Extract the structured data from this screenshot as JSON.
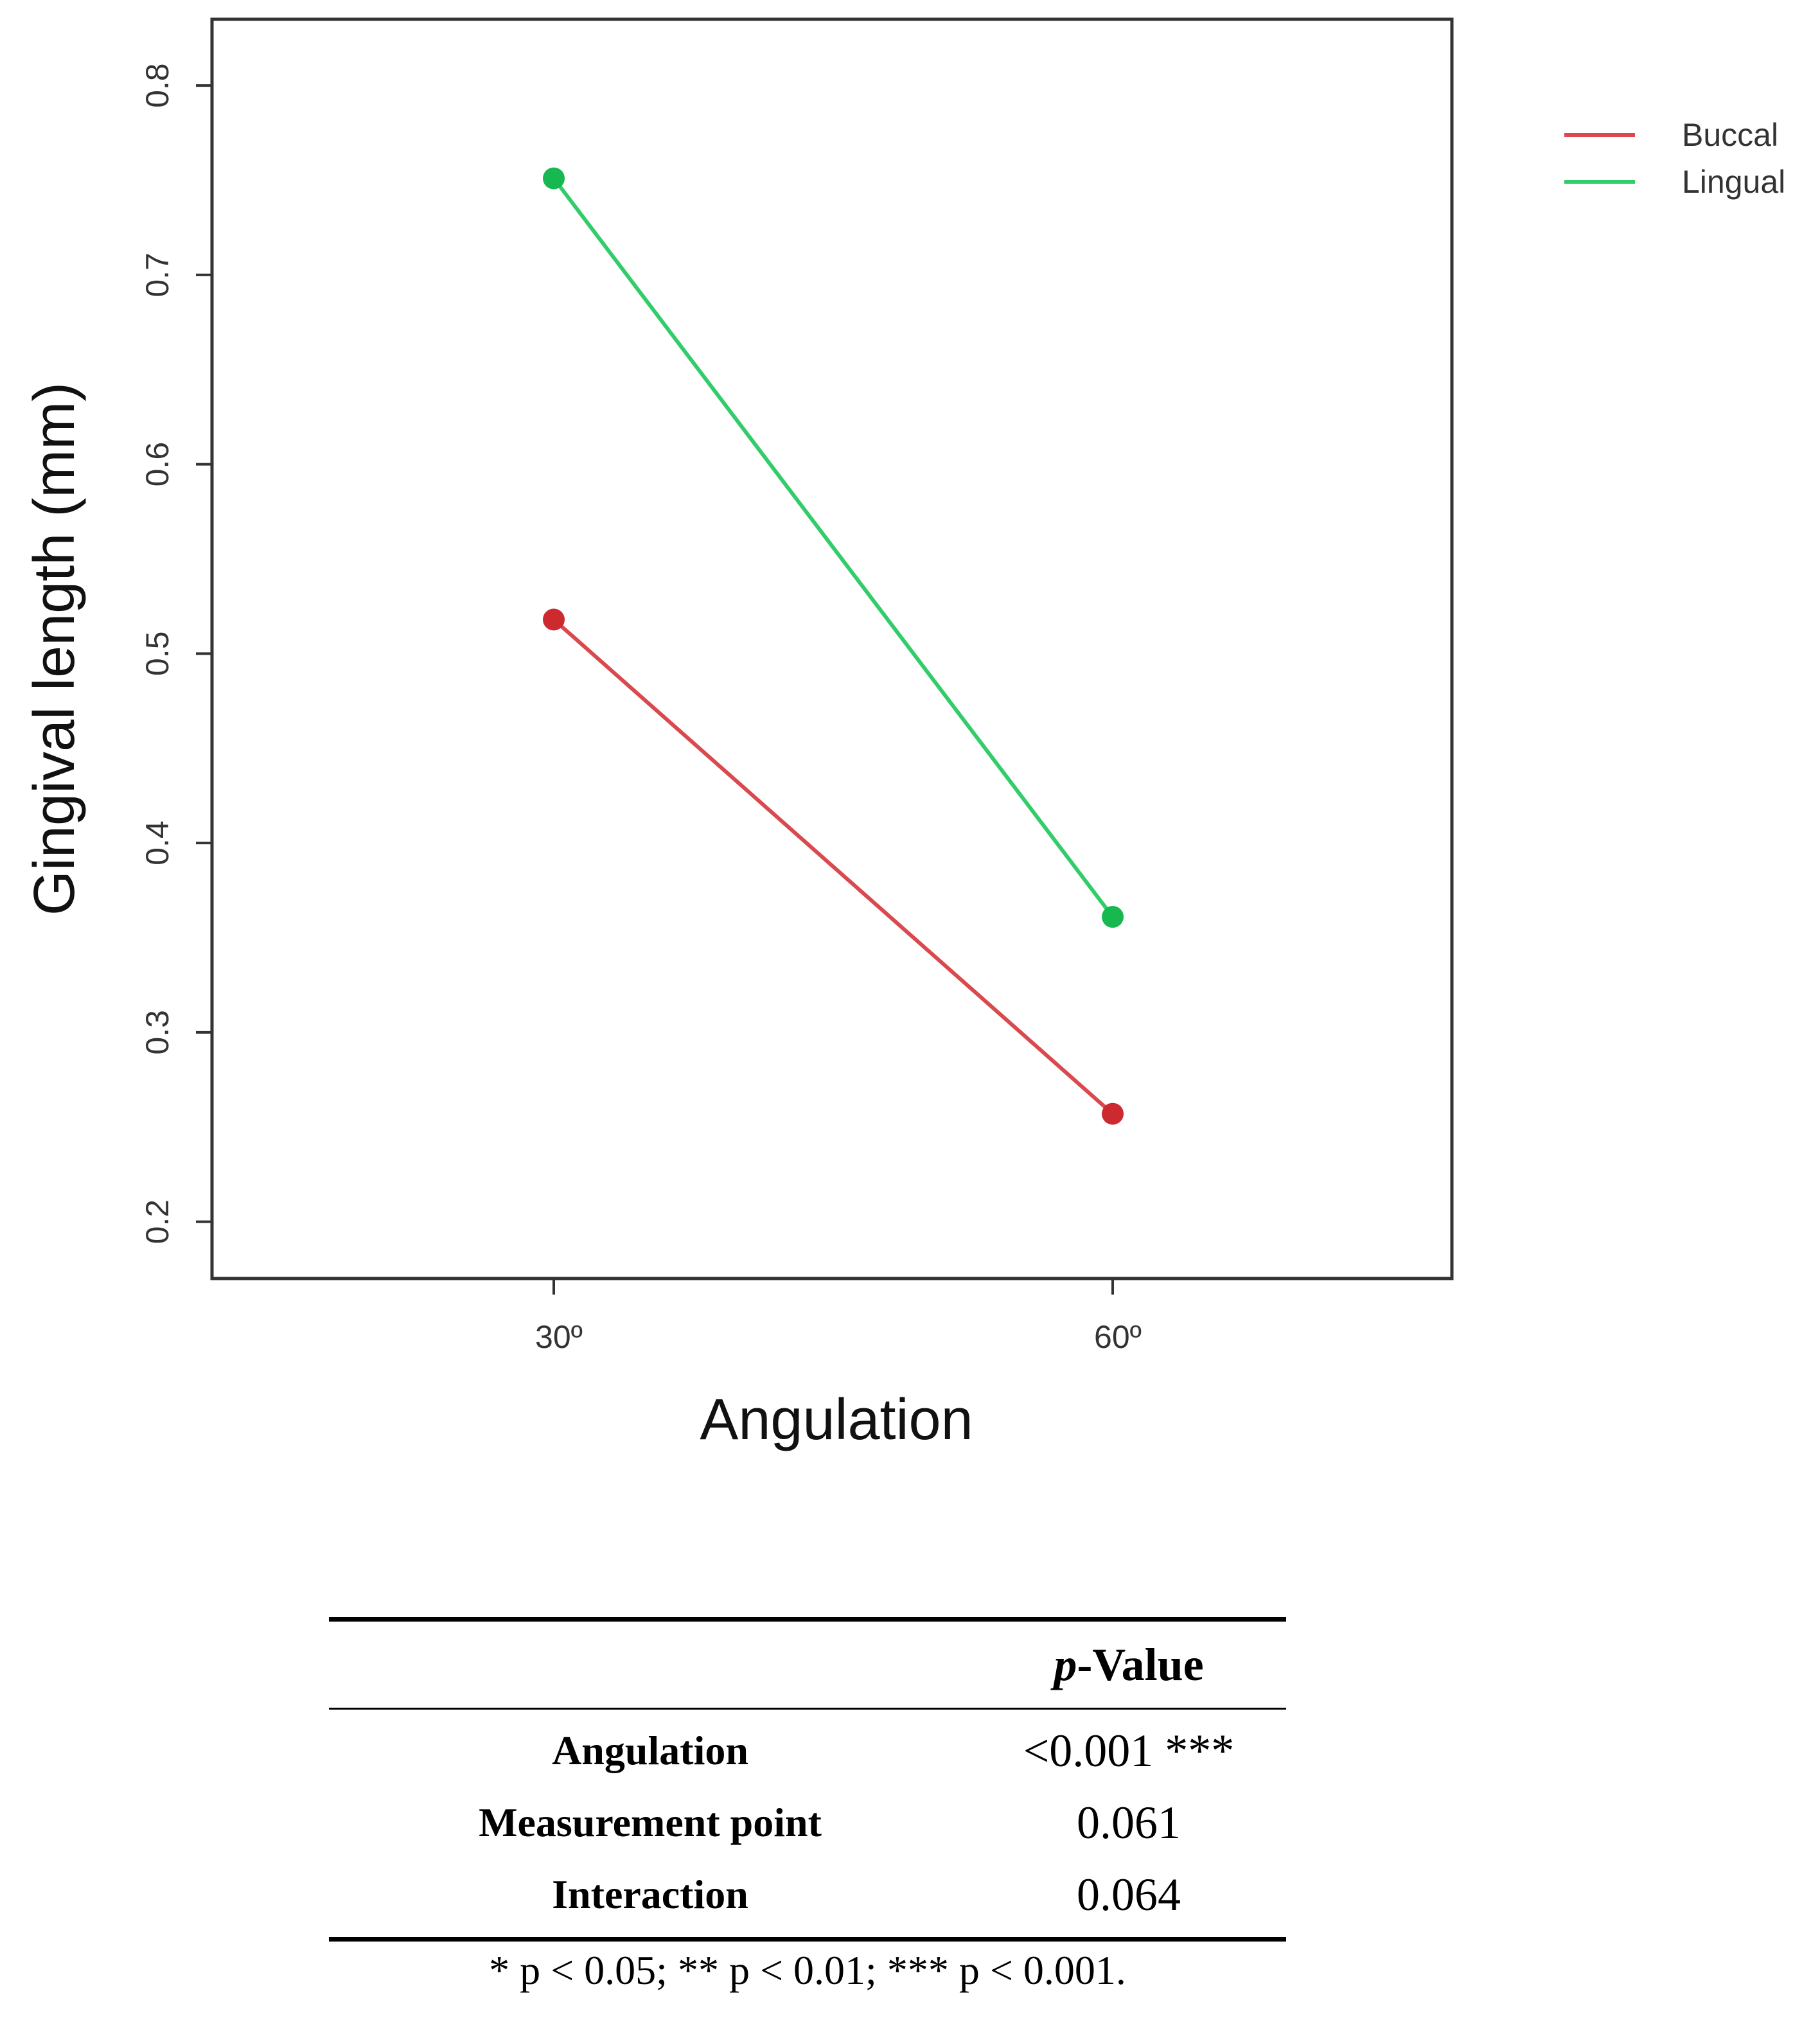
{
  "chart_data": {
    "type": "line",
    "xlabel": "Angulation",
    "ylabel": "Gingival length (mm)",
    "categories": [
      "30º",
      "60º"
    ],
    "ylim": [
      0.17,
      0.835
    ],
    "yticks": [
      "0.2",
      "0.3",
      "0.4",
      "0.5",
      "0.6",
      "0.7",
      "0.8"
    ],
    "yticks_values": [
      0.2,
      0.3,
      0.4,
      0.5,
      0.6,
      0.7,
      0.8
    ],
    "grid": false,
    "legend_position": "top-right-outside",
    "series": [
      {
        "name": "Buccal",
        "color": "#cc2a2f",
        "line_color": "#d9494e",
        "values": [
          0.518,
          0.257
        ]
      },
      {
        "name": "Lingual",
        "color": "#17b84f",
        "line_color": "#33cc6a",
        "values": [
          0.751,
          0.361
        ]
      }
    ]
  },
  "table": {
    "header": {
      "p": "p",
      "rest": "-Value"
    },
    "rows": [
      {
        "label": "Angulation",
        "value": "<0.001 ***"
      },
      {
        "label": "Measurement point",
        "value": "0.061"
      },
      {
        "label": "Interaction",
        "value": "0.064"
      }
    ],
    "footnote": "* p < 0.05; ** p < 0.01; *** p < 0.001."
  }
}
